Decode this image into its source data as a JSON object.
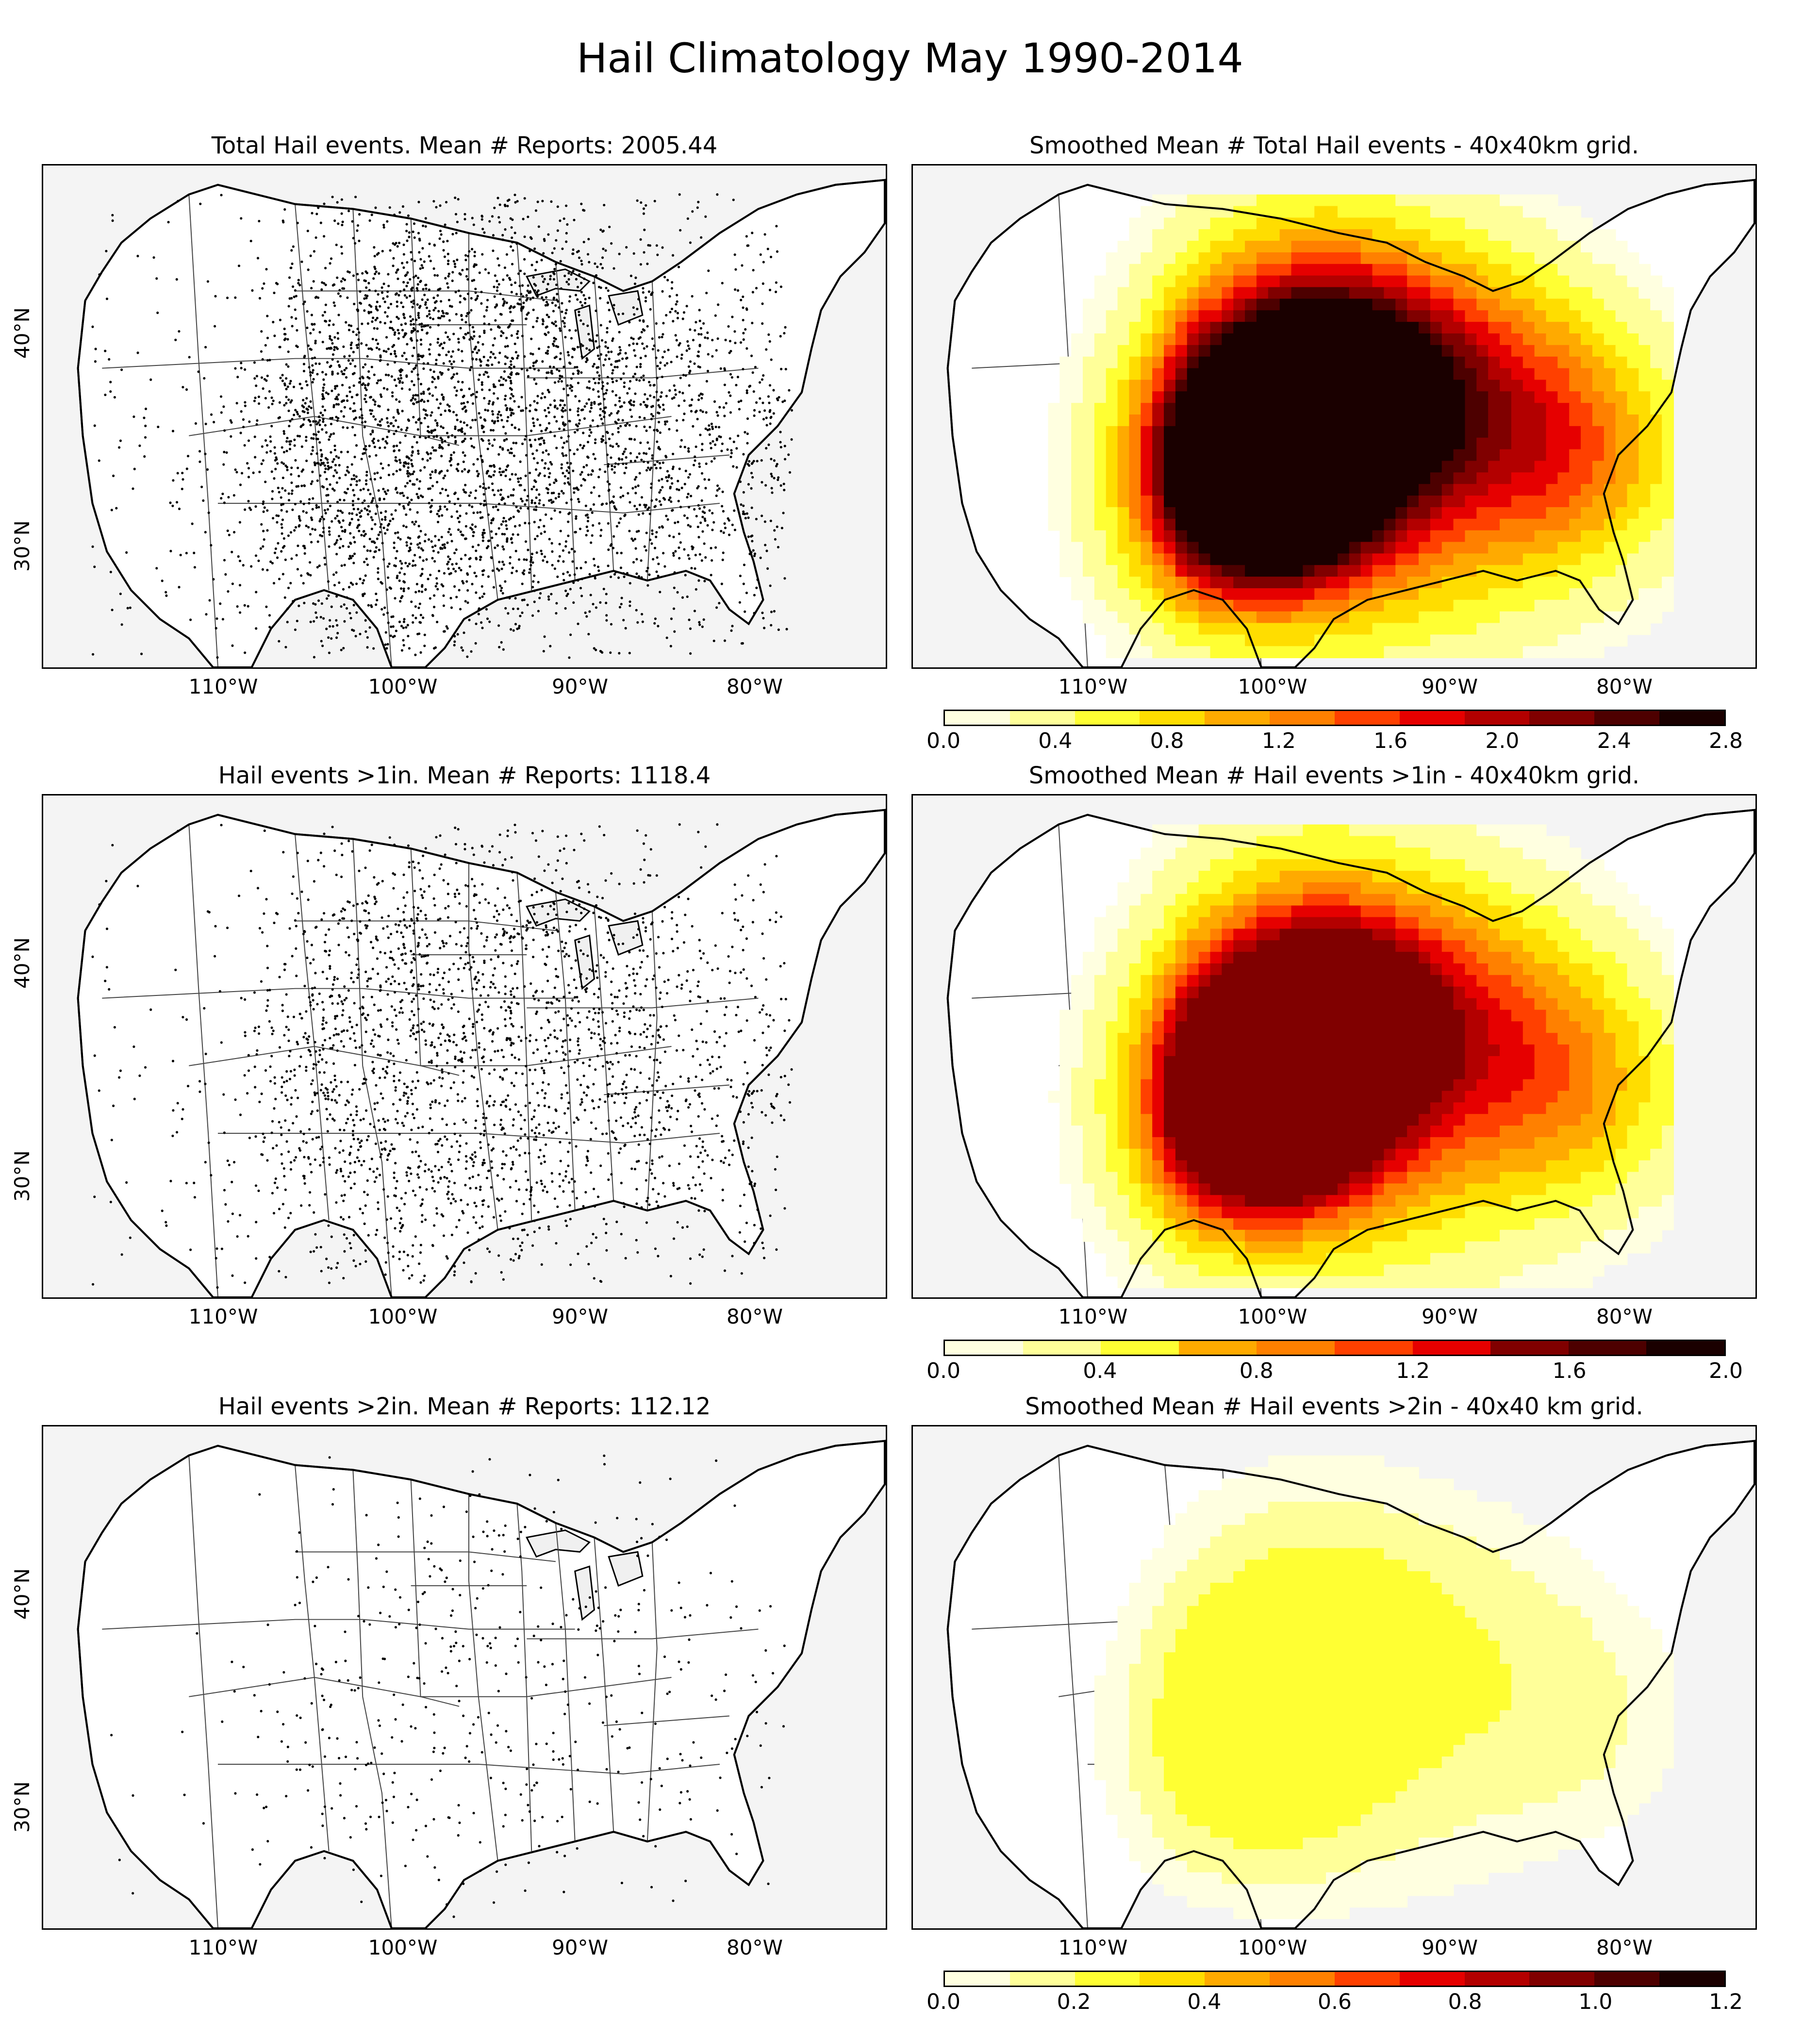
{
  "title": "Hail Climatology May 1990-2014",
  "panels": {
    "p1": {
      "title": "Total Hail events. Mean # Reports: 2005.44",
      "density": 1.0
    },
    "p2": {
      "title": "Smoothed Mean # Total Hail events - 40x40km grid.",
      "intensity": 1.0
    },
    "p3": {
      "title": "Hail events >1in. Mean # Reports: 1118.4",
      "density": 0.58
    },
    "p4": {
      "title": "Smoothed Mean # Hail events >1in - 40x40km grid.",
      "intensity": 0.82
    },
    "p5": {
      "title": "Hail events >2in. Mean # Reports: 112.12",
      "density": 0.12
    },
    "p6": {
      "title": "Smoothed Mean # Hail events >2in - 40x40 km grid.",
      "intensity": 0.22
    }
  },
  "axes": {
    "lon_labels": [
      "110°W",
      "100°W",
      "90°W",
      "80°W"
    ],
    "lat_labels": [
      "40°N",
      "30°N"
    ]
  },
  "colorbars": {
    "cb1": {
      "ticks": [
        "0.0",
        "0.4",
        "0.8",
        "1.2",
        "1.6",
        "2.0",
        "2.4",
        "2.8"
      ],
      "min": 0.0,
      "max": 2.8
    },
    "cb2": {
      "ticks": [
        "0.0",
        "0.4",
        "0.8",
        "1.2",
        "1.6",
        "2.0"
      ],
      "min": 0.0,
      "max": 2.0
    },
    "cb3": {
      "ticks": [
        "0.0",
        "0.2",
        "0.4",
        "0.6",
        "0.8",
        "1.0",
        "1.2"
      ],
      "min": 0.0,
      "max": 1.2
    }
  },
  "colormap": [
    "#ffffe0",
    "#ffff99",
    "#ffff33",
    "#ffdd00",
    "#ffaa00",
    "#ff8000",
    "#ff4000",
    "#e60000",
    "#b30000",
    "#800000",
    "#4d0000",
    "#1a0000"
  ]
}
